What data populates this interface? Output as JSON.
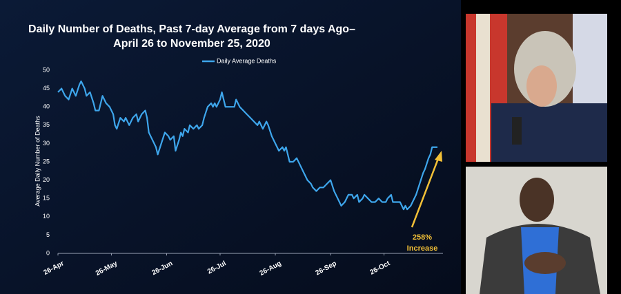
{
  "chart_data": {
    "type": "line",
    "title": [
      "Daily Number of Deaths, Past 7-day Average from 7 days Ago–",
      "April 26 to November 25, 2020"
    ],
    "y_label": "Average Daily Number of Deaths",
    "x": [
      0,
      2,
      4,
      6,
      8,
      10,
      12,
      13,
      15,
      16,
      18,
      20,
      21,
      23,
      24,
      25,
      27,
      29,
      31,
      32,
      33,
      35,
      37,
      38,
      40,
      42,
      44,
      45,
      47,
      49,
      50,
      51,
      53,
      55,
      56,
      58,
      60,
      62,
      63,
      65,
      66,
      68,
      69,
      70,
      71,
      73,
      74,
      76,
      78,
      79,
      81,
      82,
      84,
      86,
      87,
      88,
      89,
      91,
      92,
      93,
      94,
      96,
      99,
      100,
      102,
      104,
      106,
      108,
      110,
      112,
      113,
      115,
      117,
      118,
      120,
      122,
      124,
      126,
      127,
      128,
      130,
      132,
      134,
      136,
      138,
      140,
      142,
      143,
      145,
      147,
      149,
      151,
      153,
      155,
      157,
      159,
      161,
      163,
      165,
      166,
      168,
      169,
      171,
      172,
      174,
      176,
      178,
      180,
      182,
      184,
      185,
      187,
      188,
      190,
      192,
      194,
      195,
      196,
      198,
      199,
      201,
      203,
      205,
      206,
      208,
      209,
      210,
      212,
      213
    ],
    "series": [
      {
        "name": "Daily Average Deaths",
        "color": "#3ea6ec",
        "values": [
          44,
          45,
          43,
          42,
          45,
          43,
          46,
          47,
          45,
          43,
          44,
          41,
          39,
          39,
          41,
          43,
          41,
          40,
          38,
          35,
          34,
          37,
          36,
          37,
          35,
          37,
          38,
          36,
          38,
          39,
          37,
          33,
          31,
          29,
          27,
          30,
          33,
          32,
          31,
          32,
          28,
          31,
          33,
          32,
          34,
          33,
          35,
          34,
          35,
          34,
          35,
          37,
          40,
          41,
          40,
          41,
          40,
          42,
          44,
          42,
          40,
          40,
          40,
          42,
          40,
          39,
          38,
          37,
          36,
          35,
          36,
          34,
          36,
          35,
          32,
          30,
          28,
          29,
          28,
          29,
          25,
          25,
          26,
          24,
          22,
          20,
          19,
          18,
          17,
          18,
          18,
          19,
          20,
          17,
          15,
          13,
          14,
          16,
          16,
          15,
          16,
          14,
          15,
          16,
          15,
          14,
          14,
          15,
          14,
          14,
          15,
          16,
          14,
          14,
          14,
          12,
          13,
          12,
          13,
          14,
          16,
          19,
          22,
          23,
          26,
          27,
          29,
          29,
          29
        ]
      }
    ],
    "xlim": [
      0,
      213
    ],
    "xticks": [
      {
        "value": 0,
        "label": "26-Apr"
      },
      {
        "value": 30,
        "label": "26-May"
      },
      {
        "value": 61,
        "label": "26-Jun"
      },
      {
        "value": 91,
        "label": "26-Jul"
      },
      {
        "value": 122,
        "label": "26-Aug"
      },
      {
        "value": 153,
        "label": "26-Sep"
      },
      {
        "value": 183,
        "label": "26-Oct"
      }
    ],
    "ylim": [
      0,
      50
    ],
    "yticks": [
      0,
      5,
      10,
      15,
      20,
      25,
      30,
      35,
      40,
      45,
      50
    ],
    "annotation": [
      "258%",
      "Increase"
    ],
    "annotation_color": "#f2c037"
  }
}
